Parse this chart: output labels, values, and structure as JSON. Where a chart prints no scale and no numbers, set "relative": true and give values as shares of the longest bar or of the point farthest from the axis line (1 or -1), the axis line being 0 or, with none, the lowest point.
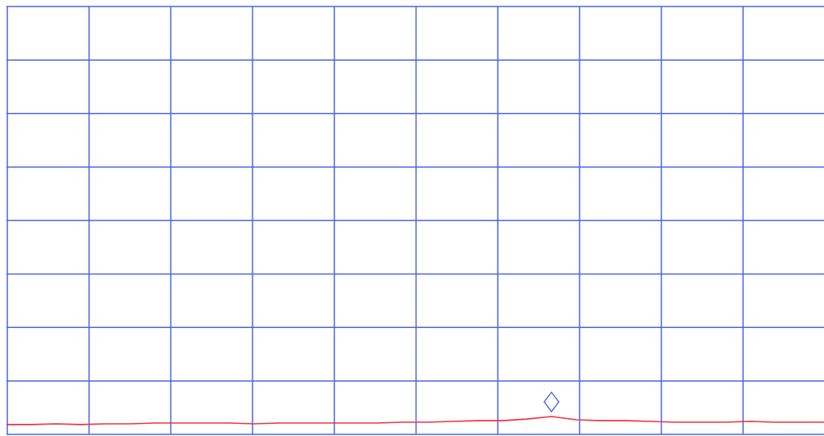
{
  "chart_data": {
    "type": "line",
    "relative": true,
    "categories": [
      null,
      null,
      null,
      null,
      null,
      null,
      null,
      null,
      null,
      null,
      null,
      null,
      null,
      null,
      null,
      null,
      null,
      null,
      null,
      null,
      null,
      null,
      null,
      null,
      null,
      null,
      null,
      null,
      null,
      null,
      null,
      null,
      null,
      null
    ],
    "series": [
      {
        "color": "#ee3344",
        "values": [
          0.55,
          0.55,
          0.59,
          0.55,
          0.59,
          0.59,
          0.64,
          0.64,
          0.64,
          0.64,
          0.59,
          0.64,
          0.64,
          0.64,
          0.64,
          0.64,
          0.68,
          0.68,
          0.73,
          0.77,
          0.77,
          0.86,
          1,
          0.82,
          0.77,
          0.77,
          0.73,
          0.68,
          0.68,
          0.68,
          0.73,
          0.68,
          0.68,
          0.68
        ]
      }
    ],
    "grid": true,
    "marker": "none",
    "line_style": "solid"
  }
}
